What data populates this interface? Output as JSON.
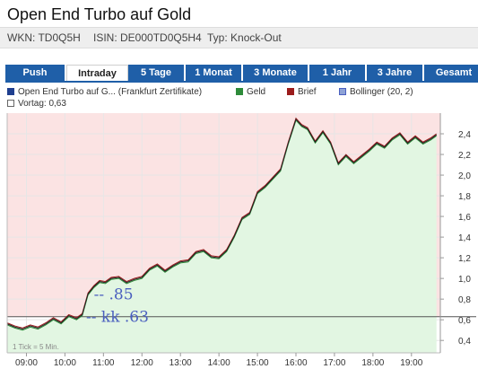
{
  "header": {
    "title": "Open End Turbo auf Gold",
    "wkn": "WKN: TD0Q5H",
    "isin": "ISIN: DE000TD0Q5H4",
    "typ": "Typ: Knock-Out"
  },
  "tabs": [
    {
      "label": "Push",
      "active": false
    },
    {
      "label": "Intraday",
      "active": true
    },
    {
      "label": "5 Tage",
      "active": false
    },
    {
      "label": "1 Monat",
      "active": false
    },
    {
      "label": "3 Monate",
      "active": false
    },
    {
      "label": "1 Jahr",
      "active": false
    },
    {
      "label": "3 Jahre",
      "active": false
    },
    {
      "label": "Gesamt",
      "active": false
    }
  ],
  "legend": {
    "main": "Open End Turbo auf G... (Frankfurt Zertifikate)",
    "geld": "Geld",
    "brief": "Brief",
    "bollinger": "Bollinger (20, 2)",
    "vortag": "Vortag: 0,63"
  },
  "colors": {
    "tab_bg": "#1f5fa8",
    "main_series": "#1f3f8f",
    "geld": "#2e8b3a",
    "brief": "#9b1c1c",
    "bollinger": "#8ea2d6",
    "area_above": "#fbe3e3",
    "area_below": "#e2f6e2",
    "annotation": "#4a5fbf"
  },
  "chart_data": {
    "type": "line",
    "x_ticks": [
      "09:00",
      "10:00",
      "11:00",
      "12:00",
      "13:00",
      "14:00",
      "15:00",
      "16:00",
      "17:00",
      "18:00",
      "19:00"
    ],
    "y_ticks": [
      "0,4",
      "0,6",
      "0,8",
      "1,0",
      "1,2",
      "1,4",
      "1,6",
      "1,8",
      "2,0",
      "2,2",
      "2,4"
    ],
    "y_tick_values": [
      0.4,
      0.6,
      0.8,
      1.0,
      1.2,
      1.4,
      1.6,
      1.8,
      2.0,
      2.2,
      2.4
    ],
    "ylim": [
      0.28,
      2.6
    ],
    "xlim": [
      8.5,
      19.75
    ],
    "reference_line": 0.63,
    "tick_note": "1 Tick = 5 Min.",
    "annotations": [
      {
        "text": "-- .85",
        "x": 10.75,
        "y": 0.85
      },
      {
        "text": "-- kk .63",
        "x": 10.55,
        "y": 0.63
      }
    ],
    "series": [
      {
        "name": "Geld",
        "x": [
          8.5,
          8.7,
          8.9,
          9.1,
          9.3,
          9.5,
          9.7,
          9.9,
          10.1,
          10.3,
          10.45,
          10.6,
          10.75,
          10.9,
          11.05,
          11.2,
          11.4,
          11.6,
          11.8,
          12.0,
          12.2,
          12.4,
          12.6,
          12.8,
          13.0,
          13.2,
          13.4,
          13.6,
          13.8,
          14.0,
          14.2,
          14.4,
          14.6,
          14.8,
          15.0,
          15.2,
          15.4,
          15.6,
          15.8,
          16.0,
          16.15,
          16.3,
          16.5,
          16.7,
          16.9,
          17.1,
          17.3,
          17.5,
          17.7,
          17.9,
          18.1,
          18.3,
          18.5,
          18.7,
          18.9,
          19.1,
          19.3,
          19.5,
          19.65
        ],
        "values": [
          0.55,
          0.52,
          0.5,
          0.53,
          0.51,
          0.55,
          0.6,
          0.56,
          0.63,
          0.6,
          0.64,
          0.84,
          0.91,
          0.96,
          0.95,
          0.99,
          1.0,
          0.95,
          0.98,
          1.0,
          1.08,
          1.12,
          1.06,
          1.11,
          1.15,
          1.16,
          1.24,
          1.26,
          1.2,
          1.19,
          1.26,
          1.4,
          1.57,
          1.62,
          1.82,
          1.88,
          1.96,
          2.04,
          2.3,
          2.53,
          2.47,
          2.44,
          2.31,
          2.41,
          2.3,
          2.1,
          2.18,
          2.11,
          2.17,
          2.23,
          2.3,
          2.26,
          2.34,
          2.39,
          2.3,
          2.36,
          2.3,
          2.34,
          2.38
        ]
      },
      {
        "name": "Brief",
        "x": [
          8.5,
          8.7,
          8.9,
          9.1,
          9.3,
          9.5,
          9.7,
          9.9,
          10.1,
          10.3,
          10.45,
          10.6,
          10.75,
          10.9,
          11.05,
          11.2,
          11.4,
          11.6,
          11.8,
          12.0,
          12.2,
          12.4,
          12.6,
          12.8,
          13.0,
          13.2,
          13.4,
          13.6,
          13.8,
          14.0,
          14.2,
          14.4,
          14.6,
          14.8,
          15.0,
          15.2,
          15.4,
          15.6,
          15.8,
          16.0,
          16.15,
          16.3,
          16.5,
          16.7,
          16.9,
          17.1,
          17.3,
          17.5,
          17.7,
          17.9,
          18.1,
          18.3,
          18.5,
          18.7,
          18.9,
          19.1,
          19.3,
          19.5,
          19.65
        ],
        "values": [
          0.57,
          0.54,
          0.52,
          0.55,
          0.53,
          0.57,
          0.62,
          0.58,
          0.65,
          0.62,
          0.66,
          0.86,
          0.93,
          0.98,
          0.97,
          1.01,
          1.02,
          0.97,
          1.0,
          1.02,
          1.1,
          1.14,
          1.08,
          1.13,
          1.17,
          1.18,
          1.26,
          1.28,
          1.22,
          1.21,
          1.28,
          1.42,
          1.59,
          1.64,
          1.84,
          1.9,
          1.98,
          2.06,
          2.32,
          2.55,
          2.49,
          2.46,
          2.33,
          2.43,
          2.32,
          2.12,
          2.2,
          2.13,
          2.19,
          2.25,
          2.32,
          2.28,
          2.36,
          2.41,
          2.32,
          2.38,
          2.32,
          2.36,
          2.4
        ]
      }
    ]
  }
}
